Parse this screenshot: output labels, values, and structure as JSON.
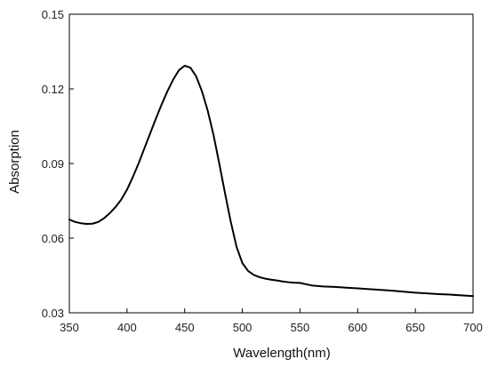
{
  "chart_data": {
    "type": "line",
    "xlabel": "Wavelength(nm)",
    "ylabel": "Absorption",
    "xlim": [
      350,
      700
    ],
    "ylim": [
      0.03,
      0.15
    ],
    "xticks": [
      350,
      400,
      450,
      500,
      550,
      600,
      650,
      700
    ],
    "yticks": [
      0.03,
      0.06,
      0.09,
      0.12,
      0.15
    ],
    "ytick_labels": [
      "0.03",
      "0.06",
      "0.09",
      "0.12",
      "0.15"
    ],
    "grid": false,
    "series": [
      {
        "color": "#000000",
        "x": [
          350,
          355,
          360,
          365,
          370,
          375,
          380,
          385,
          390,
          395,
          400,
          405,
          410,
          415,
          420,
          425,
          430,
          435,
          440,
          445,
          450,
          455,
          460,
          465,
          470,
          475,
          480,
          485,
          490,
          495,
          500,
          505,
          510,
          515,
          520,
          525,
          530,
          535,
          540,
          545,
          550,
          560,
          570,
          580,
          590,
          600,
          610,
          620,
          630,
          640,
          650,
          660,
          670,
          680,
          690,
          700
        ],
        "y": [
          0.0675,
          0.0665,
          0.066,
          0.0657,
          0.0658,
          0.0665,
          0.068,
          0.07,
          0.0725,
          0.0755,
          0.0795,
          0.0845,
          0.09,
          0.096,
          0.102,
          0.108,
          0.1137,
          0.119,
          0.1237,
          0.1275,
          0.1293,
          0.1285,
          0.125,
          0.119,
          0.1112,
          0.1015,
          0.09,
          0.078,
          0.0665,
          0.0565,
          0.05,
          0.0468,
          0.0452,
          0.0443,
          0.0437,
          0.0433,
          0.043,
          0.0426,
          0.0423,
          0.0421,
          0.042,
          0.041,
          0.0406,
          0.0404,
          0.0401,
          0.0398,
          0.0395,
          0.0392,
          0.0389,
          0.0385,
          0.0381,
          0.0378,
          0.0375,
          0.0373,
          0.037,
          0.0367
        ]
      }
    ]
  }
}
